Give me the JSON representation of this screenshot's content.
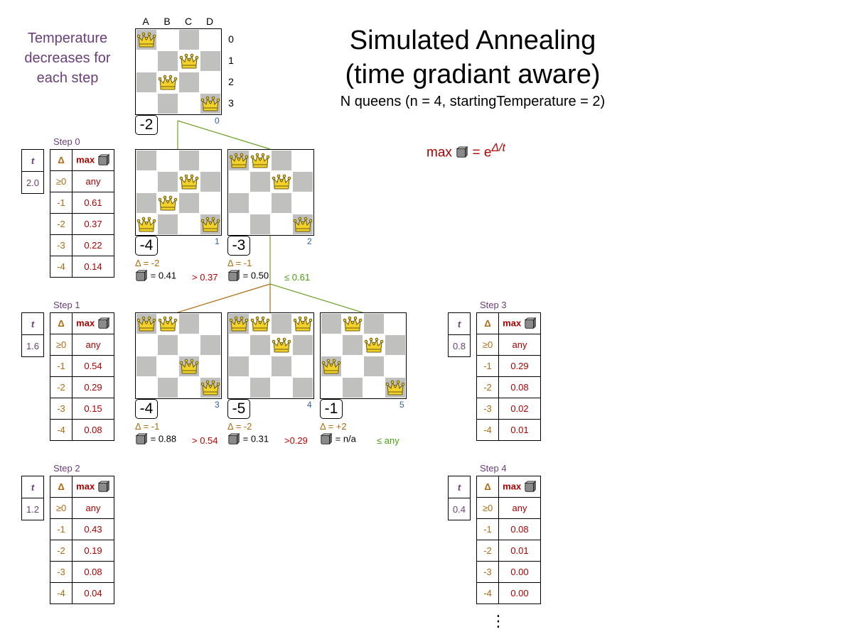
{
  "title_line1": "Simulated Annealing",
  "title_line2": "(time gradiant aware)",
  "subtitle": "N queens (n = 4, startingTemperature = 2)",
  "note": "Temperature decreases for each step",
  "formula": {
    "prefix": "max",
    "eq": "= e",
    "exponent": "Δ/t"
  },
  "col_headers": [
    "A",
    "B",
    "C",
    "D"
  ],
  "row_headers": [
    "0",
    "1",
    "2",
    "3"
  ],
  "colors": {
    "dark_cell": "#c0c0be",
    "delta": "#b06a10",
    "max": "#b00000",
    "temp": "#6b3f7a",
    "accept": "#4aa010",
    "reject": "#c00000",
    "index": "#3060a0"
  },
  "boards": [
    {
      "id": "root",
      "queens": [
        0,
        2,
        1,
        3
      ],
      "score": "-2",
      "index": "0"
    },
    {
      "id": "b1",
      "queens": [
        3,
        2,
        1,
        3
      ],
      "score": "-4",
      "index": "1",
      "delta": "Δ = -2",
      "rand": "= 0.41",
      "cmp": "> 0.37",
      "accepted": false
    },
    {
      "id": "b2",
      "queens": [
        0,
        0,
        1,
        3
      ],
      "score": "-3",
      "index": "2",
      "delta": "Δ = -1",
      "rand": "= 0.50",
      "cmp": "≤ 0.61",
      "accepted": true
    },
    {
      "id": "b3",
      "queens": [
        0,
        0,
        2,
        3
      ],
      "score": "-4",
      "index": "3",
      "delta": "Δ = -1",
      "rand": "= 0.88",
      "cmp": "> 0.54",
      "accepted": false
    },
    {
      "id": "b4",
      "queens": [
        0,
        0,
        1,
        0
      ],
      "score": "-5",
      "index": "4",
      "delta": "Δ = -2",
      "rand": "= 0.31",
      "cmp": ">0.29",
      "accepted": false
    },
    {
      "id": "b5",
      "queens": [
        2,
        0,
        1,
        3
      ],
      "score": "-1",
      "index": "5",
      "delta": "Δ = +2",
      "rand": "= n/a",
      "cmp": "≤ any",
      "accepted": true
    }
  ],
  "steps": [
    {
      "label": "Step 0",
      "t": "2.0",
      "rows": [
        [
          "≥0",
          "any"
        ],
        [
          "-1",
          "0.61"
        ],
        [
          "-2",
          "0.37"
        ],
        [
          "-3",
          "0.22"
        ],
        [
          "-4",
          "0.14"
        ]
      ]
    },
    {
      "label": "Step 1",
      "t": "1.6",
      "rows": [
        [
          "≥0",
          "any"
        ],
        [
          "-1",
          "0.54"
        ],
        [
          "-2",
          "0.29"
        ],
        [
          "-3",
          "0.15"
        ],
        [
          "-4",
          "0.08"
        ]
      ]
    },
    {
      "label": "Step 2",
      "t": "1.2",
      "rows": [
        [
          "≥0",
          "any"
        ],
        [
          "-1",
          "0.43"
        ],
        [
          "-2",
          "0.19"
        ],
        [
          "-3",
          "0.08"
        ],
        [
          "-4",
          "0.04"
        ]
      ]
    },
    {
      "label": "Step 3",
      "t": "0.8",
      "rows": [
        [
          "≥0",
          "any"
        ],
        [
          "-1",
          "0.29"
        ],
        [
          "-2",
          "0.08"
        ],
        [
          "-3",
          "0.02"
        ],
        [
          "-4",
          "0.01"
        ]
      ]
    },
    {
      "label": "Step 4",
      "t": "0.4",
      "rows": [
        [
          "≥0",
          "any"
        ],
        [
          "-1",
          "0.08"
        ],
        [
          "-2",
          "0.01"
        ],
        [
          "-3",
          "0.00"
        ],
        [
          "-4",
          "0.00"
        ]
      ]
    }
  ],
  "table_headers": {
    "t": "t",
    "delta": "Δ",
    "max": "max"
  },
  "continuation": "⋮"
}
